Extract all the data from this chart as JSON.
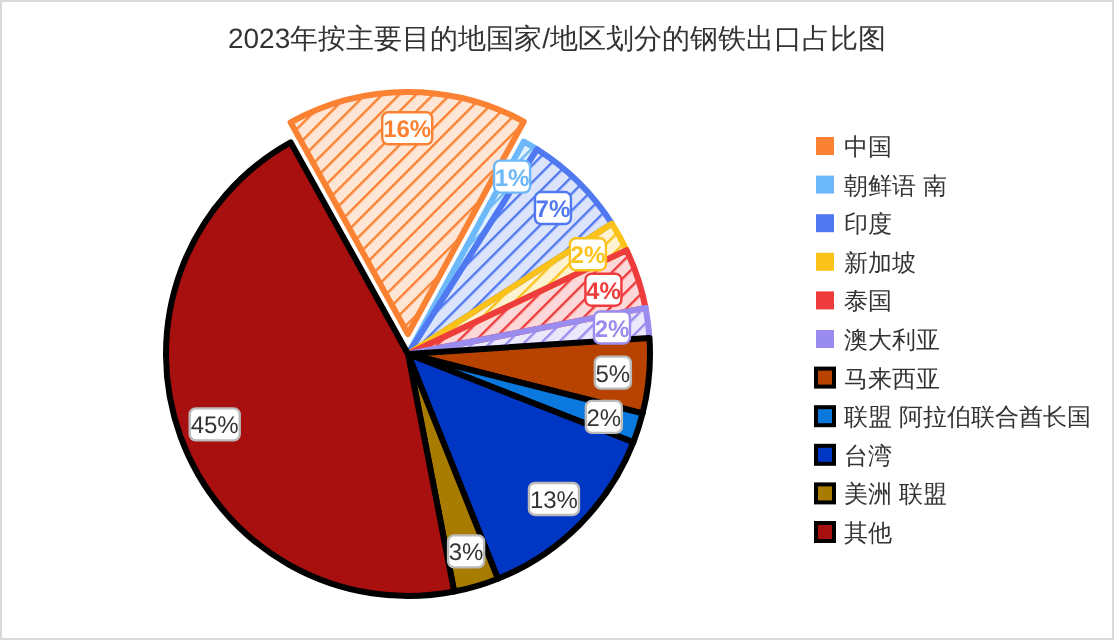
{
  "chart_data": {
    "type": "pie",
    "title": "2023年按主要目的地国家/地区划分的钢铁出口占比图",
    "categories": [
      "中国",
      "朝鲜语 南",
      "印度",
      "新加坡",
      "泰国",
      "澳大利亚",
      "马来西亚",
      "联盟 阿拉伯联合酋长国",
      "台湾",
      "美洲 联盟",
      "其他"
    ],
    "values": [
      16,
      1,
      7,
      2,
      4,
      2,
      5,
      2,
      13,
      3,
      45
    ],
    "colors": [
      "#fb8233",
      "#6cb8f8",
      "#5078f0",
      "#fbc21a",
      "#ee3b3b",
      "#9a8cee",
      "#b84300",
      "#0a78dc",
      "#0036c4",
      "#a87c00",
      "#a80f0f"
    ],
    "value_labels": [
      "16%",
      "1%",
      "7%",
      "2%",
      "4%",
      "2%",
      "5%",
      "2%",
      "13%",
      "3%",
      "45%"
    ],
    "legend": "right"
  }
}
